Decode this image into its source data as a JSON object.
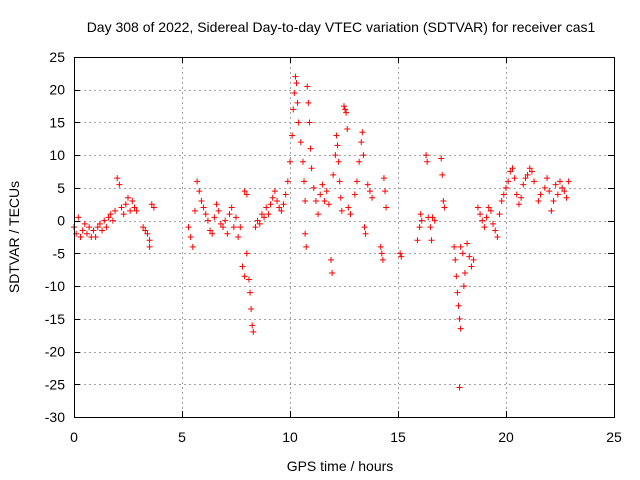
{
  "chart_data": {
    "type": "scatter",
    "title": "Day 308 of 2022, Sidereal Day-to-day VTEC variation (SDTVAR) for receiver cas1",
    "xlabel": "GPS time / hours",
    "ylabel": "SDTVAR / TECUs",
    "xlim": [
      0,
      25
    ],
    "ylim": [
      -30,
      25
    ],
    "xticks": [
      0,
      5,
      10,
      15,
      20,
      25
    ],
    "yticks": [
      -30,
      -25,
      -20,
      -15,
      -10,
      -5,
      0,
      5,
      10,
      15,
      20,
      25
    ],
    "grid": true,
    "marker": "+",
    "color": "#ff0000",
    "series": [
      {
        "name": "SDTVAR",
        "points": [
          [
            0.0,
            -1.0
          ],
          [
            0.1,
            -2.0
          ],
          [
            0.2,
            0.5
          ],
          [
            0.3,
            -2.5
          ],
          [
            0.4,
            -1.5
          ],
          [
            0.5,
            -0.5
          ],
          [
            0.6,
            -2.0
          ],
          [
            0.7,
            -1.0
          ],
          [
            0.8,
            -2.5
          ],
          [
            0.9,
            -1.5
          ],
          [
            1.0,
            -2.5
          ],
          [
            1.1,
            -1.0
          ],
          [
            1.2,
            -0.5
          ],
          [
            1.3,
            -1.5
          ],
          [
            1.4,
            0.0
          ],
          [
            1.5,
            -1.0
          ],
          [
            1.6,
            0.5
          ],
          [
            1.7,
            1.0
          ],
          [
            1.8,
            0.0
          ],
          [
            1.9,
            1.5
          ],
          [
            2.0,
            6.5
          ],
          [
            2.1,
            5.5
          ],
          [
            2.2,
            2.0
          ],
          [
            2.3,
            1.0
          ],
          [
            2.4,
            2.5
          ],
          [
            2.5,
            3.5
          ],
          [
            2.6,
            1.5
          ],
          [
            2.7,
            3.0
          ],
          [
            2.8,
            2.0
          ],
          [
            2.9,
            1.5
          ],
          [
            3.2,
            -1.0
          ],
          [
            3.3,
            -1.5
          ],
          [
            3.4,
            -2.0
          ],
          [
            3.5,
            -3.0
          ],
          [
            3.5,
            -4.0
          ],
          [
            3.6,
            2.5
          ],
          [
            3.7,
            2.0
          ],
          [
            5.3,
            -1.0
          ],
          [
            5.4,
            -2.5
          ],
          [
            5.5,
            -4.0
          ],
          [
            5.6,
            1.5
          ],
          [
            5.7,
            6.0
          ],
          [
            5.8,
            4.5
          ],
          [
            5.9,
            3.0
          ],
          [
            6.0,
            2.0
          ],
          [
            6.1,
            1.0
          ],
          [
            6.2,
            0.0
          ],
          [
            6.3,
            -1.5
          ],
          [
            6.4,
            -2.0
          ],
          [
            6.5,
            0.5
          ],
          [
            6.6,
            2.5
          ],
          [
            6.7,
            1.5
          ],
          [
            6.8,
            -0.5
          ],
          [
            6.9,
            -1.0
          ],
          [
            7.0,
            0.0
          ],
          [
            7.1,
            -2.0
          ],
          [
            7.2,
            1.0
          ],
          [
            7.3,
            2.0
          ],
          [
            7.4,
            -1.0
          ],
          [
            7.5,
            0.5
          ],
          [
            7.6,
            -2.5
          ],
          [
            7.7,
            -1.0
          ],
          [
            7.8,
            -7.0
          ],
          [
            7.9,
            -8.5
          ],
          [
            8.0,
            -5.0
          ],
          [
            7.9,
            4.5
          ],
          [
            8.0,
            4.0
          ],
          [
            8.1,
            -9.0
          ],
          [
            8.15,
            -11.0
          ],
          [
            8.2,
            -13.5
          ],
          [
            8.25,
            -16.0
          ],
          [
            8.3,
            -17.0
          ],
          [
            8.4,
            -1.0
          ],
          [
            8.5,
            0.0
          ],
          [
            8.6,
            -0.5
          ],
          [
            8.7,
            1.0
          ],
          [
            8.8,
            0.5
          ],
          [
            8.9,
            2.0
          ],
          [
            9.0,
            1.0
          ],
          [
            9.1,
            2.5
          ],
          [
            9.2,
            3.5
          ],
          [
            9.3,
            4.5
          ],
          [
            9.4,
            3.0
          ],
          [
            9.5,
            2.0
          ],
          [
            9.6,
            1.5
          ],
          [
            9.7,
            2.5
          ],
          [
            9.8,
            4.0
          ],
          [
            9.9,
            6.0
          ],
          [
            10.0,
            9.0
          ],
          [
            10.1,
            13.0
          ],
          [
            10.15,
            17.0
          ],
          [
            10.2,
            19.5
          ],
          [
            10.25,
            22.0
          ],
          [
            10.3,
            21.0
          ],
          [
            10.35,
            18.0
          ],
          [
            10.4,
            15.0
          ],
          [
            10.5,
            12.0
          ],
          [
            10.6,
            9.0
          ],
          [
            10.65,
            6.0
          ],
          [
            10.7,
            3.0
          ],
          [
            10.7,
            -2.0
          ],
          [
            10.75,
            -4.0
          ],
          [
            10.8,
            20.5
          ],
          [
            10.85,
            18.0
          ],
          [
            10.9,
            15.0
          ],
          [
            10.95,
            11.0
          ],
          [
            11.0,
            8.0
          ],
          [
            11.1,
            5.0
          ],
          [
            11.2,
            3.0
          ],
          [
            11.3,
            1.0
          ],
          [
            11.4,
            4.0
          ],
          [
            11.5,
            5.5
          ],
          [
            11.6,
            3.0
          ],
          [
            11.7,
            4.5
          ],
          [
            11.8,
            2.5
          ],
          [
            11.9,
            -6.0
          ],
          [
            11.95,
            -8.0
          ],
          [
            12.0,
            7.0
          ],
          [
            12.1,
            10.0
          ],
          [
            12.15,
            13.0
          ],
          [
            12.2,
            11.5
          ],
          [
            12.25,
            9.0
          ],
          [
            12.3,
            6.0
          ],
          [
            12.35,
            3.5
          ],
          [
            12.4,
            1.5
          ],
          [
            12.5,
            17.5
          ],
          [
            12.55,
            17.0
          ],
          [
            12.6,
            16.5
          ],
          [
            12.65,
            14.0
          ],
          [
            12.7,
            2.0
          ],
          [
            12.8,
            1.0
          ],
          [
            13.0,
            4.0
          ],
          [
            13.1,
            6.0
          ],
          [
            13.2,
            9.0
          ],
          [
            13.3,
            12.0
          ],
          [
            13.35,
            13.5
          ],
          [
            13.4,
            10.0
          ],
          [
            13.45,
            -1.0
          ],
          [
            13.5,
            -2.0
          ],
          [
            13.6,
            5.5
          ],
          [
            13.7,
            4.5
          ],
          [
            13.8,
            3.5
          ],
          [
            14.2,
            -4.0
          ],
          [
            14.25,
            -5.0
          ],
          [
            14.3,
            -6.0
          ],
          [
            14.35,
            6.5
          ],
          [
            14.4,
            4.5
          ],
          [
            14.45,
            2.0
          ],
          [
            15.1,
            -5.0
          ],
          [
            15.15,
            -5.5
          ],
          [
            15.9,
            -3.0
          ],
          [
            16.0,
            -1.0
          ],
          [
            16.05,
            1.0
          ],
          [
            16.1,
            0.0
          ],
          [
            16.3,
            10.0
          ],
          [
            16.35,
            9.0
          ],
          [
            16.4,
            0.5
          ],
          [
            16.5,
            -1.0
          ],
          [
            16.55,
            -3.0
          ],
          [
            16.6,
            0.5
          ],
          [
            16.7,
            0.0
          ],
          [
            17.0,
            9.5
          ],
          [
            17.05,
            7.0
          ],
          [
            17.1,
            3.0
          ],
          [
            17.15,
            2.0
          ],
          [
            17.6,
            -4.0
          ],
          [
            17.65,
            -6.0
          ],
          [
            17.7,
            -8.5
          ],
          [
            17.75,
            -11.0
          ],
          [
            17.8,
            -13.0
          ],
          [
            17.85,
            -15.0
          ],
          [
            17.9,
            -16.5
          ],
          [
            17.85,
            -25.5
          ],
          [
            17.9,
            -4.0
          ],
          [
            18.0,
            -5.0
          ],
          [
            18.05,
            -10.0
          ],
          [
            18.1,
            -8.0
          ],
          [
            18.2,
            -3.5
          ],
          [
            18.3,
            -5.5
          ],
          [
            18.4,
            -7.0
          ],
          [
            18.5,
            -6.0
          ],
          [
            18.7,
            2.0
          ],
          [
            18.8,
            1.0
          ],
          [
            18.9,
            0.0
          ],
          [
            19.0,
            -1.0
          ],
          [
            19.1,
            0.5
          ],
          [
            19.2,
            2.0
          ],
          [
            19.3,
            1.5
          ],
          [
            19.4,
            -0.5
          ],
          [
            19.5,
            -1.5
          ],
          [
            19.6,
            -2.5
          ],
          [
            19.7,
            1.0
          ],
          [
            19.8,
            3.0
          ],
          [
            19.9,
            4.0
          ],
          [
            20.0,
            5.0
          ],
          [
            20.1,
            6.0
          ],
          [
            20.2,
            7.5
          ],
          [
            20.3,
            8.0
          ],
          [
            20.4,
            6.5
          ],
          [
            20.5,
            4.0
          ],
          [
            20.6,
            2.5
          ],
          [
            20.7,
            3.5
          ],
          [
            20.8,
            5.5
          ],
          [
            20.9,
            6.5
          ],
          [
            21.0,
            7.0
          ],
          [
            21.1,
            8.0
          ],
          [
            21.2,
            7.5
          ],
          [
            21.3,
            6.0
          ],
          [
            21.5,
            3.0
          ],
          [
            21.6,
            4.0
          ],
          [
            21.8,
            5.0
          ],
          [
            21.9,
            6.5
          ],
          [
            22.0,
            4.5
          ],
          [
            22.1,
            1.5
          ],
          [
            22.2,
            3.0
          ],
          [
            22.3,
            5.5
          ],
          [
            22.4,
            4.0
          ],
          [
            22.5,
            6.0
          ],
          [
            22.6,
            5.0
          ],
          [
            22.7,
            4.5
          ],
          [
            22.8,
            3.5
          ],
          [
            22.9,
            6.0
          ]
        ]
      }
    ]
  }
}
